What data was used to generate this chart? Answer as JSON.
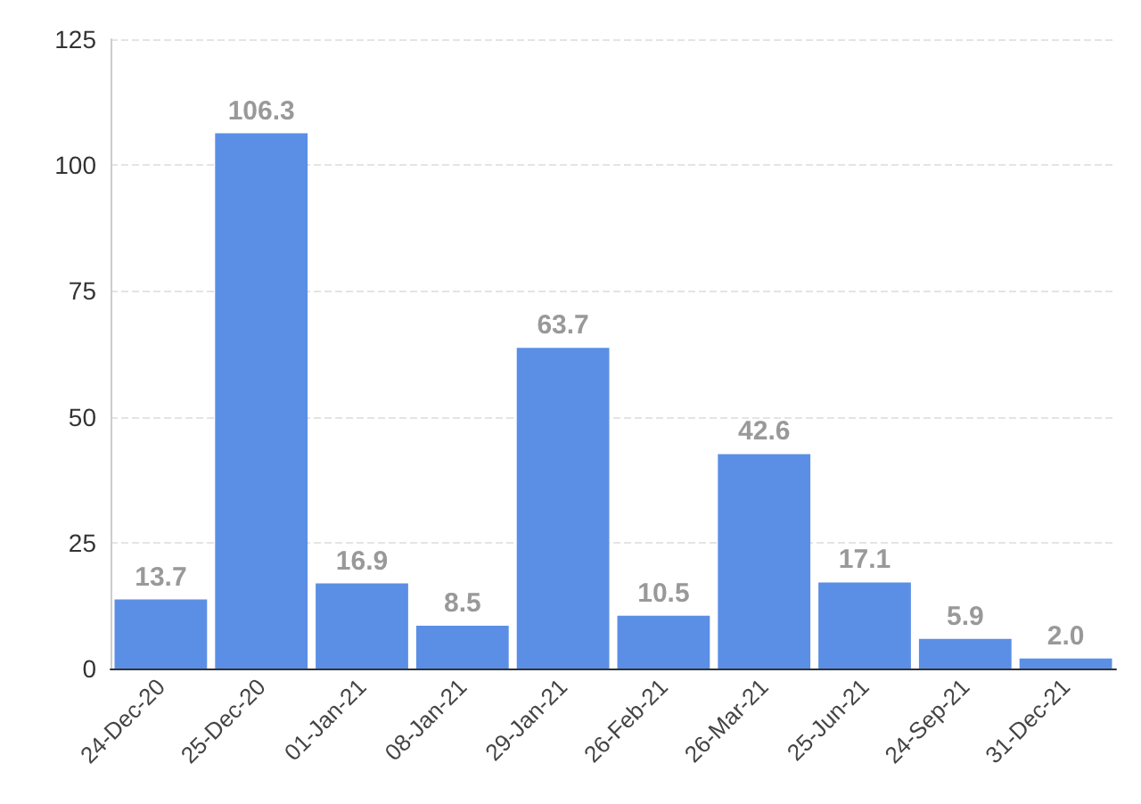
{
  "chart_data": {
    "type": "bar",
    "categories": [
      "24-Dec-20",
      "25-Dec-20",
      "01-Jan-21",
      "08-Jan-21",
      "29-Jan-21",
      "26-Feb-21",
      "26-Mar-21",
      "25-Jun-21",
      "24-Sep-21",
      "31-Dec-21"
    ],
    "values": [
      13.7,
      106.3,
      16.9,
      8.5,
      63.7,
      10.5,
      42.6,
      17.1,
      5.9,
      2.0
    ],
    "value_labels": [
      "13.7",
      "106.3",
      "16.9",
      "8.5",
      "63.7",
      "10.5",
      "42.6",
      "17.1",
      "5.9",
      "2.0"
    ],
    "color": "#5b8fe6",
    "ylim": [
      0,
      125
    ],
    "yticks": [
      0,
      25,
      50,
      75,
      100,
      125
    ],
    "grid": "y"
  }
}
